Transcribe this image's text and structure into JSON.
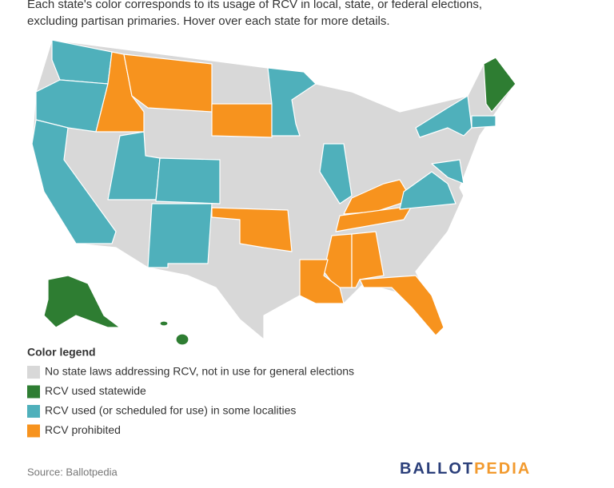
{
  "header": {
    "intro_line1": "Each state's color corresponds to its usage of RCV in local, state, or federal elections,",
    "intro_line2": "excluding partisan primaries. Hover over each state for more details."
  },
  "legend": {
    "title": "Color legend",
    "items": [
      {
        "label": "No state laws addressing RCV, not in use for general elections",
        "color": "#d8d8d8"
      },
      {
        "label": "RCV used statewide",
        "color": "#2e7d32"
      },
      {
        "label": "RCV used (or scheduled for use) in some localities",
        "color": "#4fb0bb"
      },
      {
        "label": "RCV prohibited",
        "color": "#f7931e"
      }
    ]
  },
  "footer": {
    "source": "Source: Ballotpedia",
    "logo_part1": "BALLOT",
    "logo_part2": "PEDIA"
  }
}
